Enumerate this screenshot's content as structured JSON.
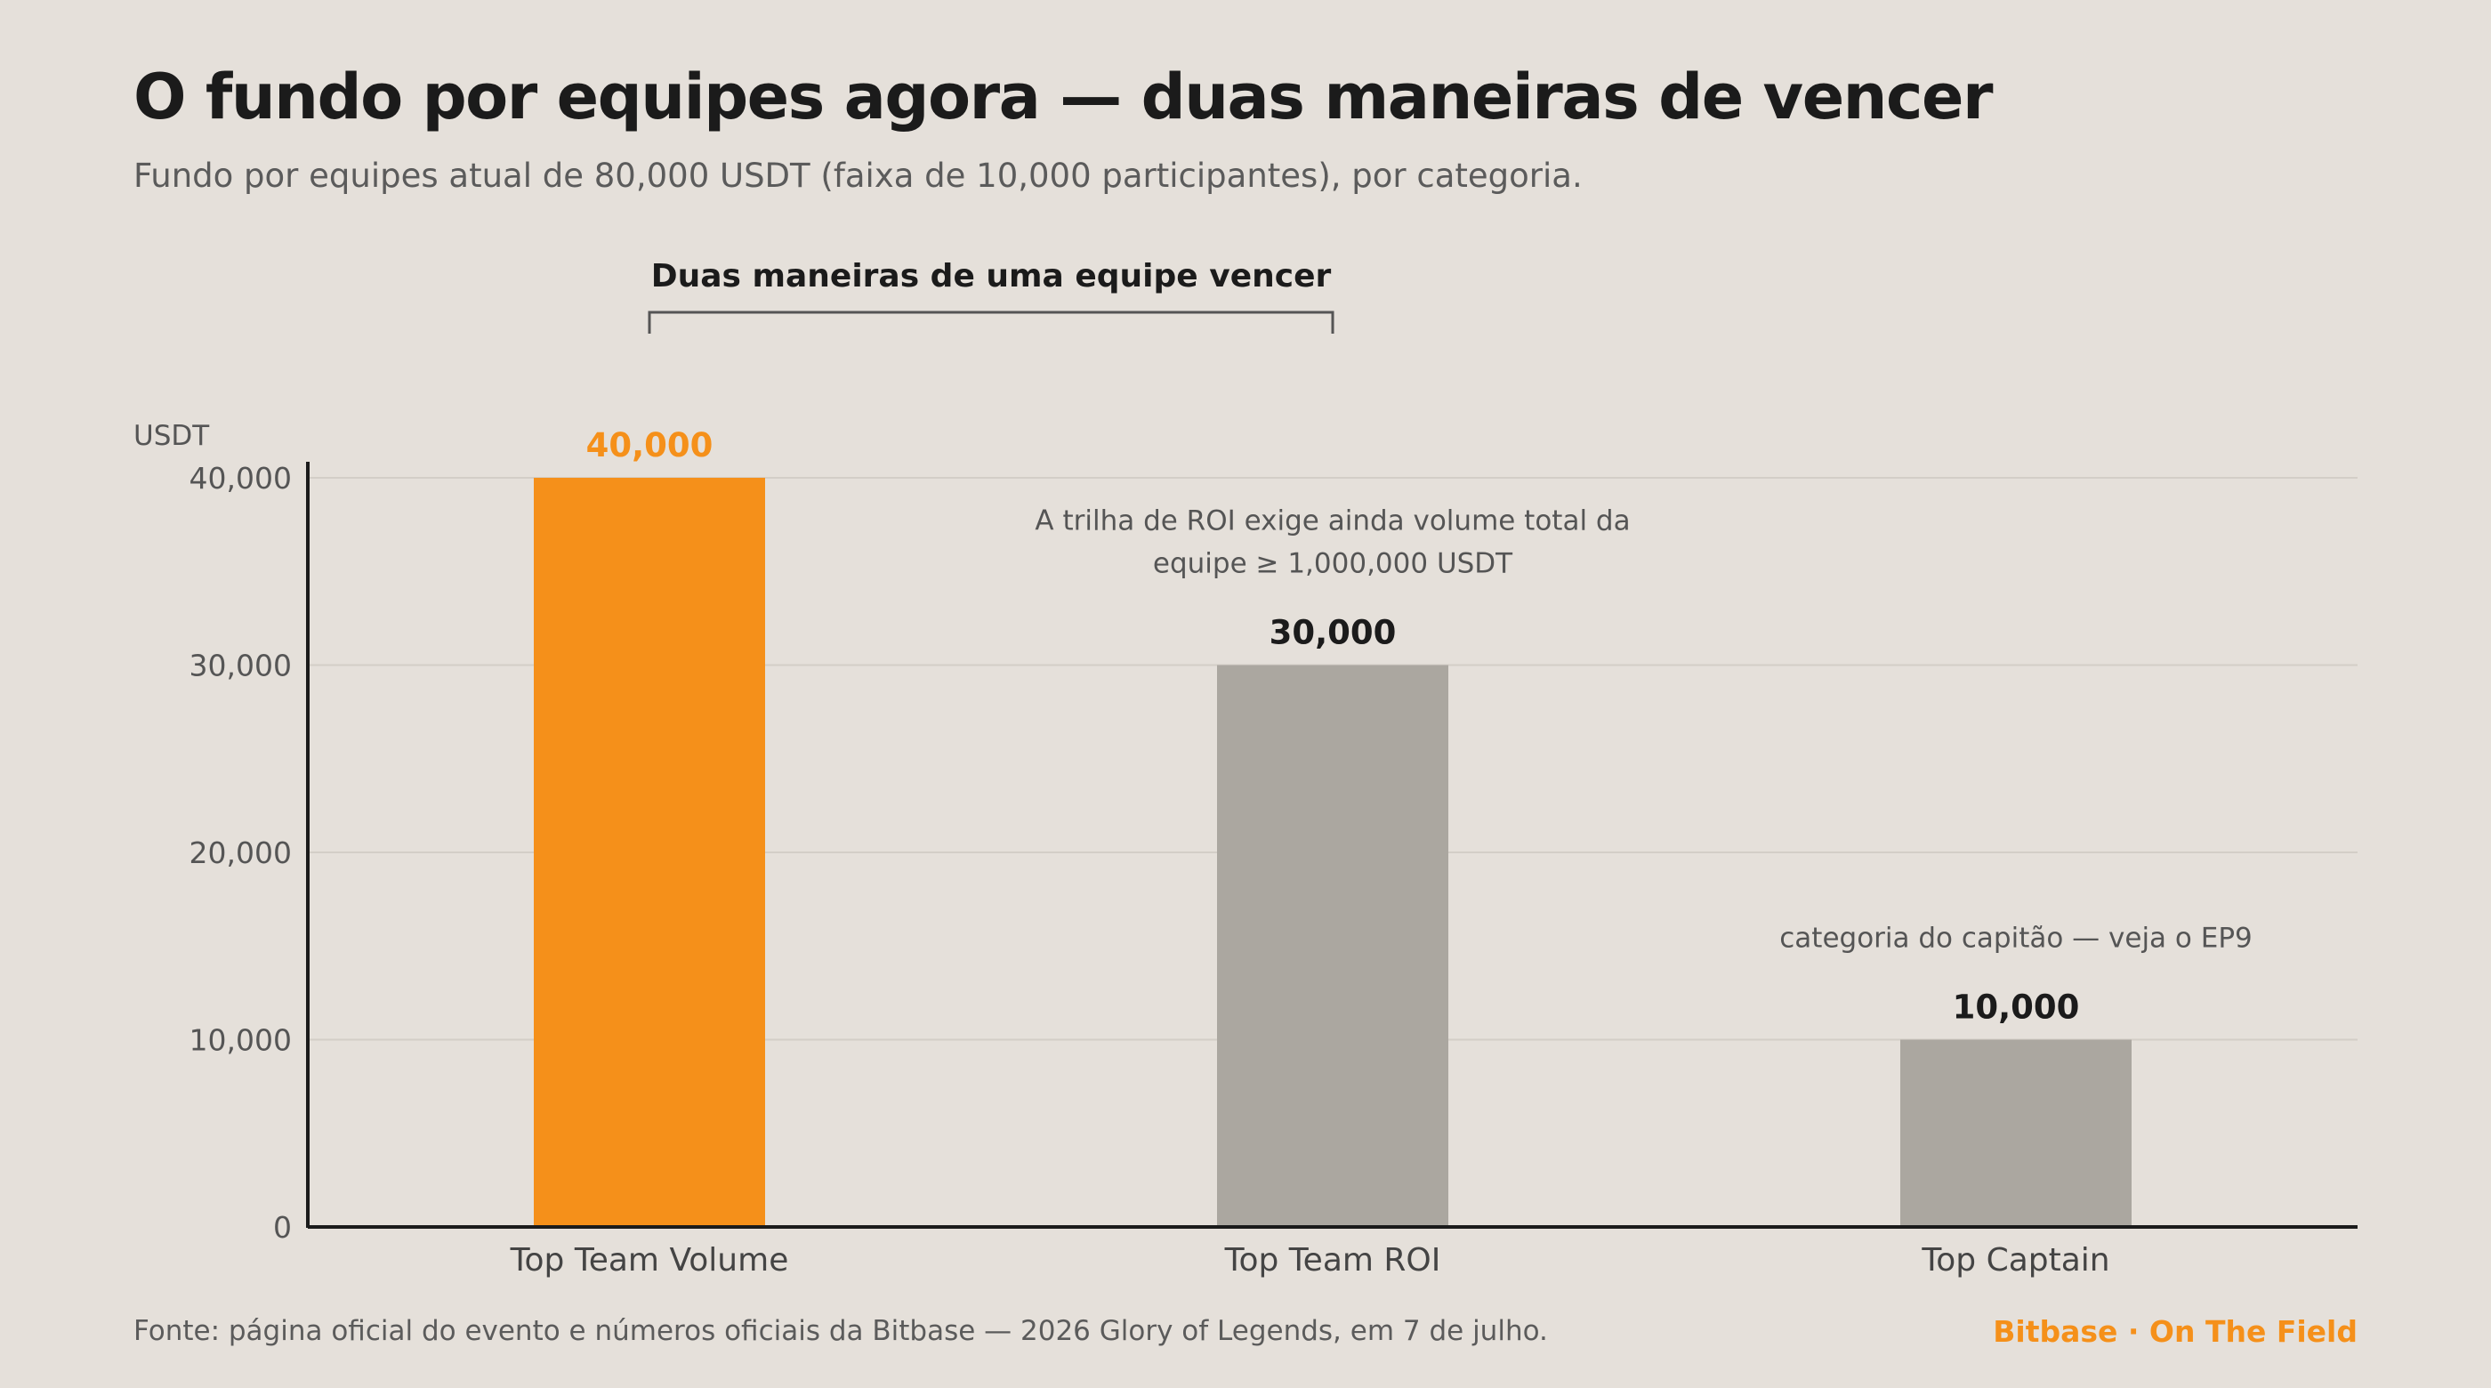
{
  "header": {
    "title": "O fundo por equipes agora — duas maneiras de vencer",
    "subtitle": "Fundo por equipes atual de 80,000 USDT (faixa de 10,000 participantes), por categoria."
  },
  "footer": {
    "source": "Fonte: página oficial do evento e números oficiais da Bitbase — 2026 Glory of Legends, em 7 de julho.",
    "brand": "Bitbase · On The Field"
  },
  "colors": {
    "accent": "#f5901a",
    "muted_bar": "#aba7a0",
    "background": "#e5e0da",
    "text": "#1b1b1b",
    "secondary_text": "#5b5b5b",
    "grid": "#d3cec7"
  },
  "chart_data": {
    "type": "bar",
    "ylabel": "USDT",
    "ylim": [
      0,
      40000
    ],
    "yticks": [
      0,
      10000,
      20000,
      30000,
      40000
    ],
    "ytick_labels": [
      "0",
      "10,000",
      "20,000",
      "30,000",
      "40,000"
    ],
    "grid": true,
    "categories": [
      "Top Team Volume",
      "Top Team ROI",
      "Top Captain"
    ],
    "values": [
      40000,
      30000,
      10000
    ],
    "value_labels": [
      "40,000",
      "30,000",
      "10,000"
    ],
    "highlight_index": 0,
    "annotations": [
      {
        "category_index": 1,
        "lines": [
          "A trilha de ROI exige ainda volume total da",
          "equipe ≥ 1,000,000 USDT"
        ]
      },
      {
        "category_index": 2,
        "lines": [
          "categoria do capitão — veja o EP9"
        ]
      }
    ],
    "bracket": {
      "label": "Duas maneiras de uma equipe vencer",
      "from_index": 0,
      "to_index": 1
    }
  }
}
